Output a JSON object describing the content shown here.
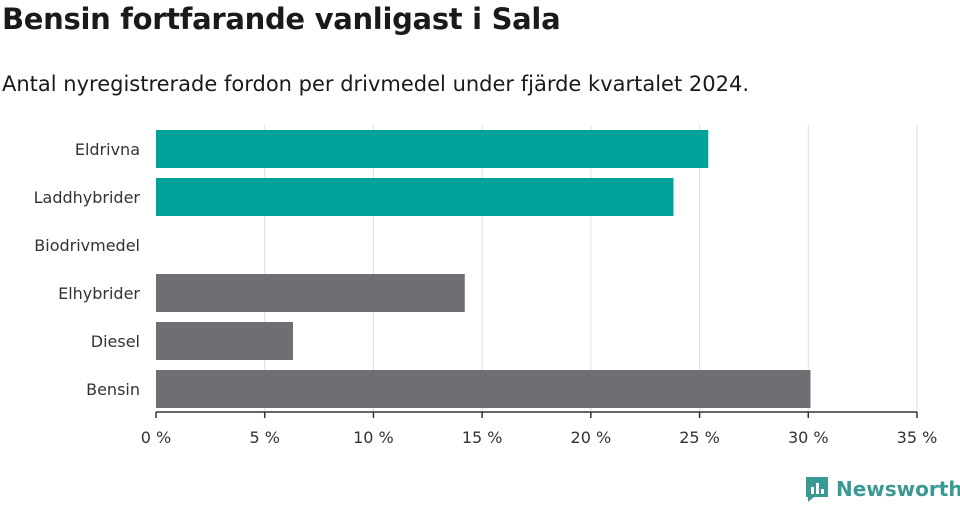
{
  "header": {
    "title": "Bensin fortfarande vanligast i Sala",
    "subtitle": "Antal nyregistrerade fordon per drivmedel under fjärde kvartalet 2024."
  },
  "brand": {
    "name": "Newsworthy",
    "icon": "newsworthy-logo-icon",
    "color": "#3a9a93"
  },
  "colors": {
    "highlight": "#00a39a",
    "default": "#6e6e73",
    "grid": "#dddddd",
    "axis": "#333333"
  },
  "chart_data": {
    "type": "bar",
    "orientation": "horizontal",
    "categories": [
      "Eldrivna",
      "Laddhybrider",
      "Biodrivmedel",
      "Elhybrider",
      "Diesel",
      "Bensin"
    ],
    "values": [
      25.4,
      23.8,
      0,
      14.2,
      6.3,
      30.1
    ],
    "highlighted": [
      true,
      true,
      false,
      false,
      false,
      false
    ],
    "xlim": [
      0,
      35
    ],
    "x_ticks": [
      0,
      5,
      10,
      15,
      20,
      25,
      30,
      35
    ],
    "tick_labels": [
      "0 %",
      "5 %",
      "10 %",
      "15 %",
      "20 %",
      "25 %",
      "30 %",
      "35 %"
    ],
    "grid": true
  }
}
